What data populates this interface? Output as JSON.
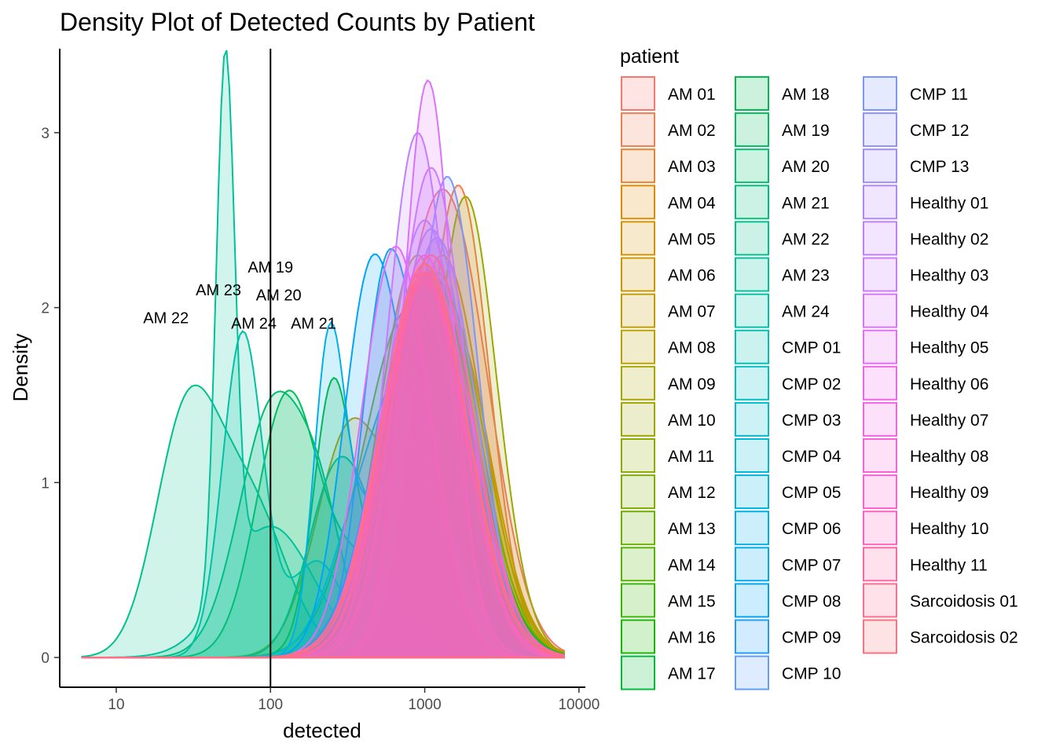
{
  "chart_data": {
    "type": "area",
    "title": "Density Plot of Detected Counts by Patient",
    "xlabel": "detected",
    "ylabel": "Density",
    "x_scale": "log10",
    "xlim": [
      4.3,
      11000
    ],
    "ylim": [
      -0.17,
      3.48
    ],
    "x_ticks": [
      10,
      100,
      1000,
      10000
    ],
    "x_tick_labels": [
      "10",
      "100",
      "1000",
      "10000"
    ],
    "y_ticks": [
      0,
      1,
      2,
      3
    ],
    "y_tick_labels": [
      "0",
      "1",
      "2",
      "3"
    ],
    "vline_x": 100,
    "grid": false,
    "legend_title": "patient",
    "legend_position": "right",
    "annotations": [
      {
        "text": "AM 19",
        "x": 100,
        "y": 2.2
      },
      {
        "text": "AM 23",
        "x": 46,
        "y": 2.07
      },
      {
        "text": "AM 20",
        "x": 113,
        "y": 2.04
      },
      {
        "text": "AM 22",
        "x": 21,
        "y": 1.91
      },
      {
        "text": "AM 24",
        "x": 78,
        "y": 1.88
      },
      {
        "text": "AM 21",
        "x": 190,
        "y": 1.88
      }
    ],
    "series": [
      {
        "name": "AM 01",
        "color": "#F8766D",
        "peaks": [
          [
            1150,
            0.28,
            2.3
          ],
          [
            2000,
            0.22,
            0.6
          ]
        ]
      },
      {
        "name": "AM 02",
        "color": "#F17E4F",
        "peaks": [
          [
            1650,
            0.2,
            2.7
          ]
        ]
      },
      {
        "name": "AM 03",
        "color": "#EA8331",
        "peaks": [
          [
            1200,
            0.25,
            2.4
          ]
        ]
      },
      {
        "name": "AM 04",
        "color": "#E18A00",
        "peaks": [
          [
            1300,
            0.26,
            2.3
          ]
        ]
      },
      {
        "name": "AM 05",
        "color": "#D89000",
        "peaks": [
          [
            1000,
            0.28,
            2.2
          ]
        ]
      },
      {
        "name": "AM 06",
        "color": "#CE9700",
        "peaks": [
          [
            330,
            0.22,
            1.3
          ],
          [
            1500,
            0.25,
            1.9
          ]
        ]
      },
      {
        "name": "AM 07",
        "color": "#C39D00",
        "peaks": [
          [
            1100,
            0.3,
            2.0
          ]
        ]
      },
      {
        "name": "AM 08",
        "color": "#B7A200",
        "peaks": [
          [
            900,
            0.25,
            2.3
          ]
        ]
      },
      {
        "name": "AM 09",
        "color": "#ABA300",
        "peaks": [
          [
            1300,
            0.27,
            2.1
          ]
        ]
      },
      {
        "name": "AM 10",
        "color": "#9EA700",
        "peaks": [
          [
            1750,
            0.19,
            2.25
          ],
          [
            2500,
            0.2,
            0.5
          ]
        ]
      },
      {
        "name": "AM 11",
        "color": "#8FAA00",
        "peaks": [
          [
            1000,
            0.28,
            2.2
          ]
        ]
      },
      {
        "name": "AM 12",
        "color": "#7FAE00",
        "peaks": [
          [
            1200,
            0.27,
            2.2
          ]
        ]
      },
      {
        "name": "AM 13",
        "color": "#6CB100",
        "peaks": [
          [
            800,
            0.3,
            2.0
          ]
        ]
      },
      {
        "name": "AM 14",
        "color": "#55B400",
        "peaks": [
          [
            1050,
            0.27,
            2.2
          ]
        ]
      },
      {
        "name": "AM 15",
        "color": "#39B600",
        "peaks": [
          [
            1100,
            0.28,
            2.2
          ]
        ]
      },
      {
        "name": "AM 16",
        "color": "#19B800",
        "peaks": [
          [
            950,
            0.28,
            2.1
          ]
        ]
      },
      {
        "name": "AM 17",
        "color": "#00BA38",
        "peaks": [
          [
            250,
            0.12,
            1.3
          ],
          [
            480,
            0.25,
            0.55
          ]
        ]
      },
      {
        "name": "AM 18",
        "color": "#00BB4E",
        "peaks": [
          [
            1100,
            0.28,
            2.0
          ]
        ]
      },
      {
        "name": "AM 19",
        "color": "#00BD5F",
        "peaks": [
          [
            130,
            0.2,
            1.5
          ],
          [
            400,
            0.2,
            0.5
          ]
        ]
      },
      {
        "name": "AM 20",
        "color": "#00BE70",
        "peaks": [
          [
            105,
            0.22,
            1.45
          ],
          [
            220,
            0.15,
            0.55
          ]
        ]
      },
      {
        "name": "AM 21",
        "color": "#00BF7D",
        "peaks": [
          [
            250,
            0.18,
            0.8
          ],
          [
            420,
            0.2,
            0.55
          ]
        ]
      },
      {
        "name": "AM 22",
        "color": "#00C08C",
        "peaks": [
          [
            28,
            0.2,
            1.25
          ],
          [
            70,
            0.25,
            0.9
          ]
        ]
      },
      {
        "name": "AM 23",
        "color": "#00C19A",
        "peaks": [
          [
            51,
            0.06,
            3.05
          ],
          [
            100,
            0.28,
            0.75
          ]
        ]
      },
      {
        "name": "AM 24",
        "color": "#00C1A7",
        "peaks": [
          [
            66,
            0.13,
            1.85
          ],
          [
            200,
            0.18,
            0.55
          ]
        ]
      },
      {
        "name": "CMP 01",
        "color": "#00C0B4",
        "peaks": [
          [
            900,
            0.27,
            2.0
          ]
        ]
      },
      {
        "name": "CMP 02",
        "color": "#00BFC2",
        "peaks": [
          [
            1000,
            0.28,
            2.1
          ]
        ]
      },
      {
        "name": "CMP 03",
        "color": "#00BCCD",
        "peaks": [
          [
            400,
            0.22,
            0.65
          ],
          [
            1100,
            0.27,
            1.8
          ]
        ]
      },
      {
        "name": "CMP 04",
        "color": "#00B8D7",
        "peaks": [
          [
            1000,
            0.28,
            2.1
          ]
        ]
      },
      {
        "name": "CMP 05",
        "color": "#00B4E0",
        "peaks": [
          [
            1050,
            0.28,
            2.1
          ]
        ]
      },
      {
        "name": "CMP 06",
        "color": "#00B0E9",
        "peaks": [
          [
            240,
            0.1,
            1.65
          ],
          [
            500,
            0.2,
            0.9
          ]
        ]
      },
      {
        "name": "CMP 07",
        "color": "#00AAF0",
        "peaks": [
          [
            550,
            0.16,
            1.85
          ],
          [
            1100,
            0.22,
            1.1
          ]
        ]
      },
      {
        "name": "CMP 08",
        "color": "#00A4F8",
        "peaks": [
          [
            440,
            0.18,
            1.95
          ],
          [
            1000,
            0.25,
            0.9
          ]
        ]
      },
      {
        "name": "CMP 09",
        "color": "#1E9DFF",
        "peaks": [
          [
            900,
            0.27,
            2.0
          ]
        ]
      },
      {
        "name": "CMP 10",
        "color": "#619CFF",
        "peaks": [
          [
            1000,
            0.27,
            2.2
          ]
        ]
      },
      {
        "name": "CMP 11",
        "color": "#7B96FF",
        "peaks": [
          [
            1400,
            0.2,
            2.75
          ]
        ]
      },
      {
        "name": "CMP 12",
        "color": "#8F91FF",
        "peaks": [
          [
            1100,
            0.25,
            2.45
          ]
        ]
      },
      {
        "name": "CMP 13",
        "color": "#9F8CFF",
        "peaks": [
          [
            1200,
            0.25,
            2.4
          ]
        ]
      },
      {
        "name": "Healthy 01",
        "color": "#B385FF",
        "peaks": [
          [
            1000,
            0.25,
            2.5
          ]
        ]
      },
      {
        "name": "Healthy 02",
        "color": "#C17FFF",
        "peaks": [
          [
            900,
            0.2,
            3.0
          ]
        ]
      },
      {
        "name": "Healthy 03",
        "color": "#CE79FF",
        "peaks": [
          [
            1100,
            0.22,
            2.8
          ]
        ]
      },
      {
        "name": "Healthy 04",
        "color": "#DB72FB",
        "peaks": [
          [
            1050,
            0.16,
            3.3
          ]
        ]
      },
      {
        "name": "Healthy 05",
        "color": "#E56CF5",
        "peaks": [
          [
            650,
            0.22,
            2.35
          ]
        ]
      },
      {
        "name": "Healthy 06",
        "color": "#EE66EE",
        "peaks": [
          [
            1000,
            0.25,
            2.3
          ]
        ]
      },
      {
        "name": "Healthy 07",
        "color": "#F564E3",
        "peaks": [
          [
            1000,
            0.27,
            2.25
          ]
        ]
      },
      {
        "name": "Healthy 08",
        "color": "#FA62D9",
        "peaks": [
          [
            950,
            0.27,
            2.2
          ]
        ]
      },
      {
        "name": "Healthy 09",
        "color": "#FD61D1",
        "peaks": [
          [
            1000,
            0.28,
            2.15
          ]
        ]
      },
      {
        "name": "Healthy 10",
        "color": "#FF62BC",
        "peaks": [
          [
            1050,
            0.28,
            2.2
          ]
        ]
      },
      {
        "name": "Healthy 11",
        "color": "#FF67A4",
        "peaks": [
          [
            1100,
            0.27,
            2.3
          ]
        ]
      },
      {
        "name": "Sarcoidosis 01",
        "color": "#FF6C90",
        "peaks": [
          [
            1000,
            0.28,
            2.2
          ]
        ]
      },
      {
        "name": "Sarcoidosis 02",
        "color": "#FC717F",
        "peaks": [
          [
            1000,
            0.27,
            2.25
          ]
        ]
      }
    ]
  }
}
